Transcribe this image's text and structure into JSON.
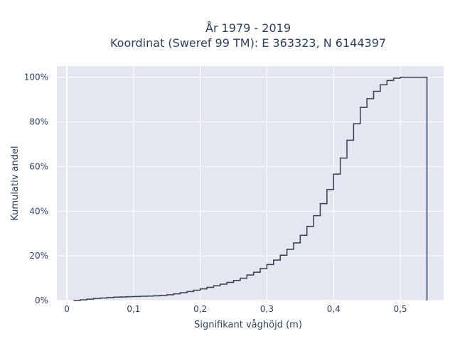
{
  "chart_data": {
    "type": "line",
    "subtype": "ecdf-step",
    "title_line1": "År 1979 - 2019",
    "title_line2": "Koordinat (Sweref 99 TM): E 363323, N 6144397",
    "xlabel": "Signifikant våghöjd (m)",
    "ylabel": "Kumulativ andel",
    "xlim": [
      -0.015,
      0.565
    ],
    "ylim": [
      0,
      1.05
    ],
    "x_ticks": [
      {
        "value": 0,
        "label": "0"
      },
      {
        "value": 0.1,
        "label": "0,1"
      },
      {
        "value": 0.2,
        "label": "0,2"
      },
      {
        "value": 0.3,
        "label": "0,3"
      },
      {
        "value": 0.4,
        "label": "0,4"
      },
      {
        "value": 0.5,
        "label": "0,5"
      }
    ],
    "y_ticks": [
      {
        "value": 0,
        "label": "0%"
      },
      {
        "value": 0.2,
        "label": "20%"
      },
      {
        "value": 0.4,
        "label": "40%"
      },
      {
        "value": 0.6,
        "label": "60%"
      },
      {
        "value": 0.8,
        "label": "80%"
      },
      {
        "value": 1.0,
        "label": "100%"
      }
    ],
    "grid": true,
    "line_color": "#2f3e4e",
    "plot_bg": "#e5e7f0",
    "series": [
      {
        "x": [
          0.01,
          0.02,
          0.03,
          0.04,
          0.05,
          0.06,
          0.07,
          0.08,
          0.09,
          0.1,
          0.11,
          0.12,
          0.13,
          0.14,
          0.15,
          0.16,
          0.17,
          0.18,
          0.19,
          0.2,
          0.21,
          0.22,
          0.23,
          0.24,
          0.25,
          0.26,
          0.27,
          0.28,
          0.29,
          0.3,
          0.31,
          0.32,
          0.33,
          0.34,
          0.35,
          0.36,
          0.37,
          0.38,
          0.39,
          0.4,
          0.41,
          0.42,
          0.43,
          0.44,
          0.45,
          0.46,
          0.47,
          0.48,
          0.49,
          0.5,
          0.54
        ],
        "y": [
          0.0,
          0.003,
          0.006,
          0.009,
          0.011,
          0.013,
          0.015,
          0.016,
          0.017,
          0.018,
          0.019,
          0.02,
          0.021,
          0.023,
          0.026,
          0.03,
          0.035,
          0.04,
          0.046,
          0.052,
          0.059,
          0.066,
          0.073,
          0.081,
          0.09,
          0.1,
          0.114,
          0.127,
          0.143,
          0.161,
          0.181,
          0.203,
          0.229,
          0.258,
          0.292,
          0.332,
          0.38,
          0.434,
          0.497,
          0.566,
          0.638,
          0.718,
          0.792,
          0.865,
          0.904,
          0.937,
          0.966,
          0.985,
          0.996,
          1.0,
          0.0
        ]
      }
    ]
  }
}
